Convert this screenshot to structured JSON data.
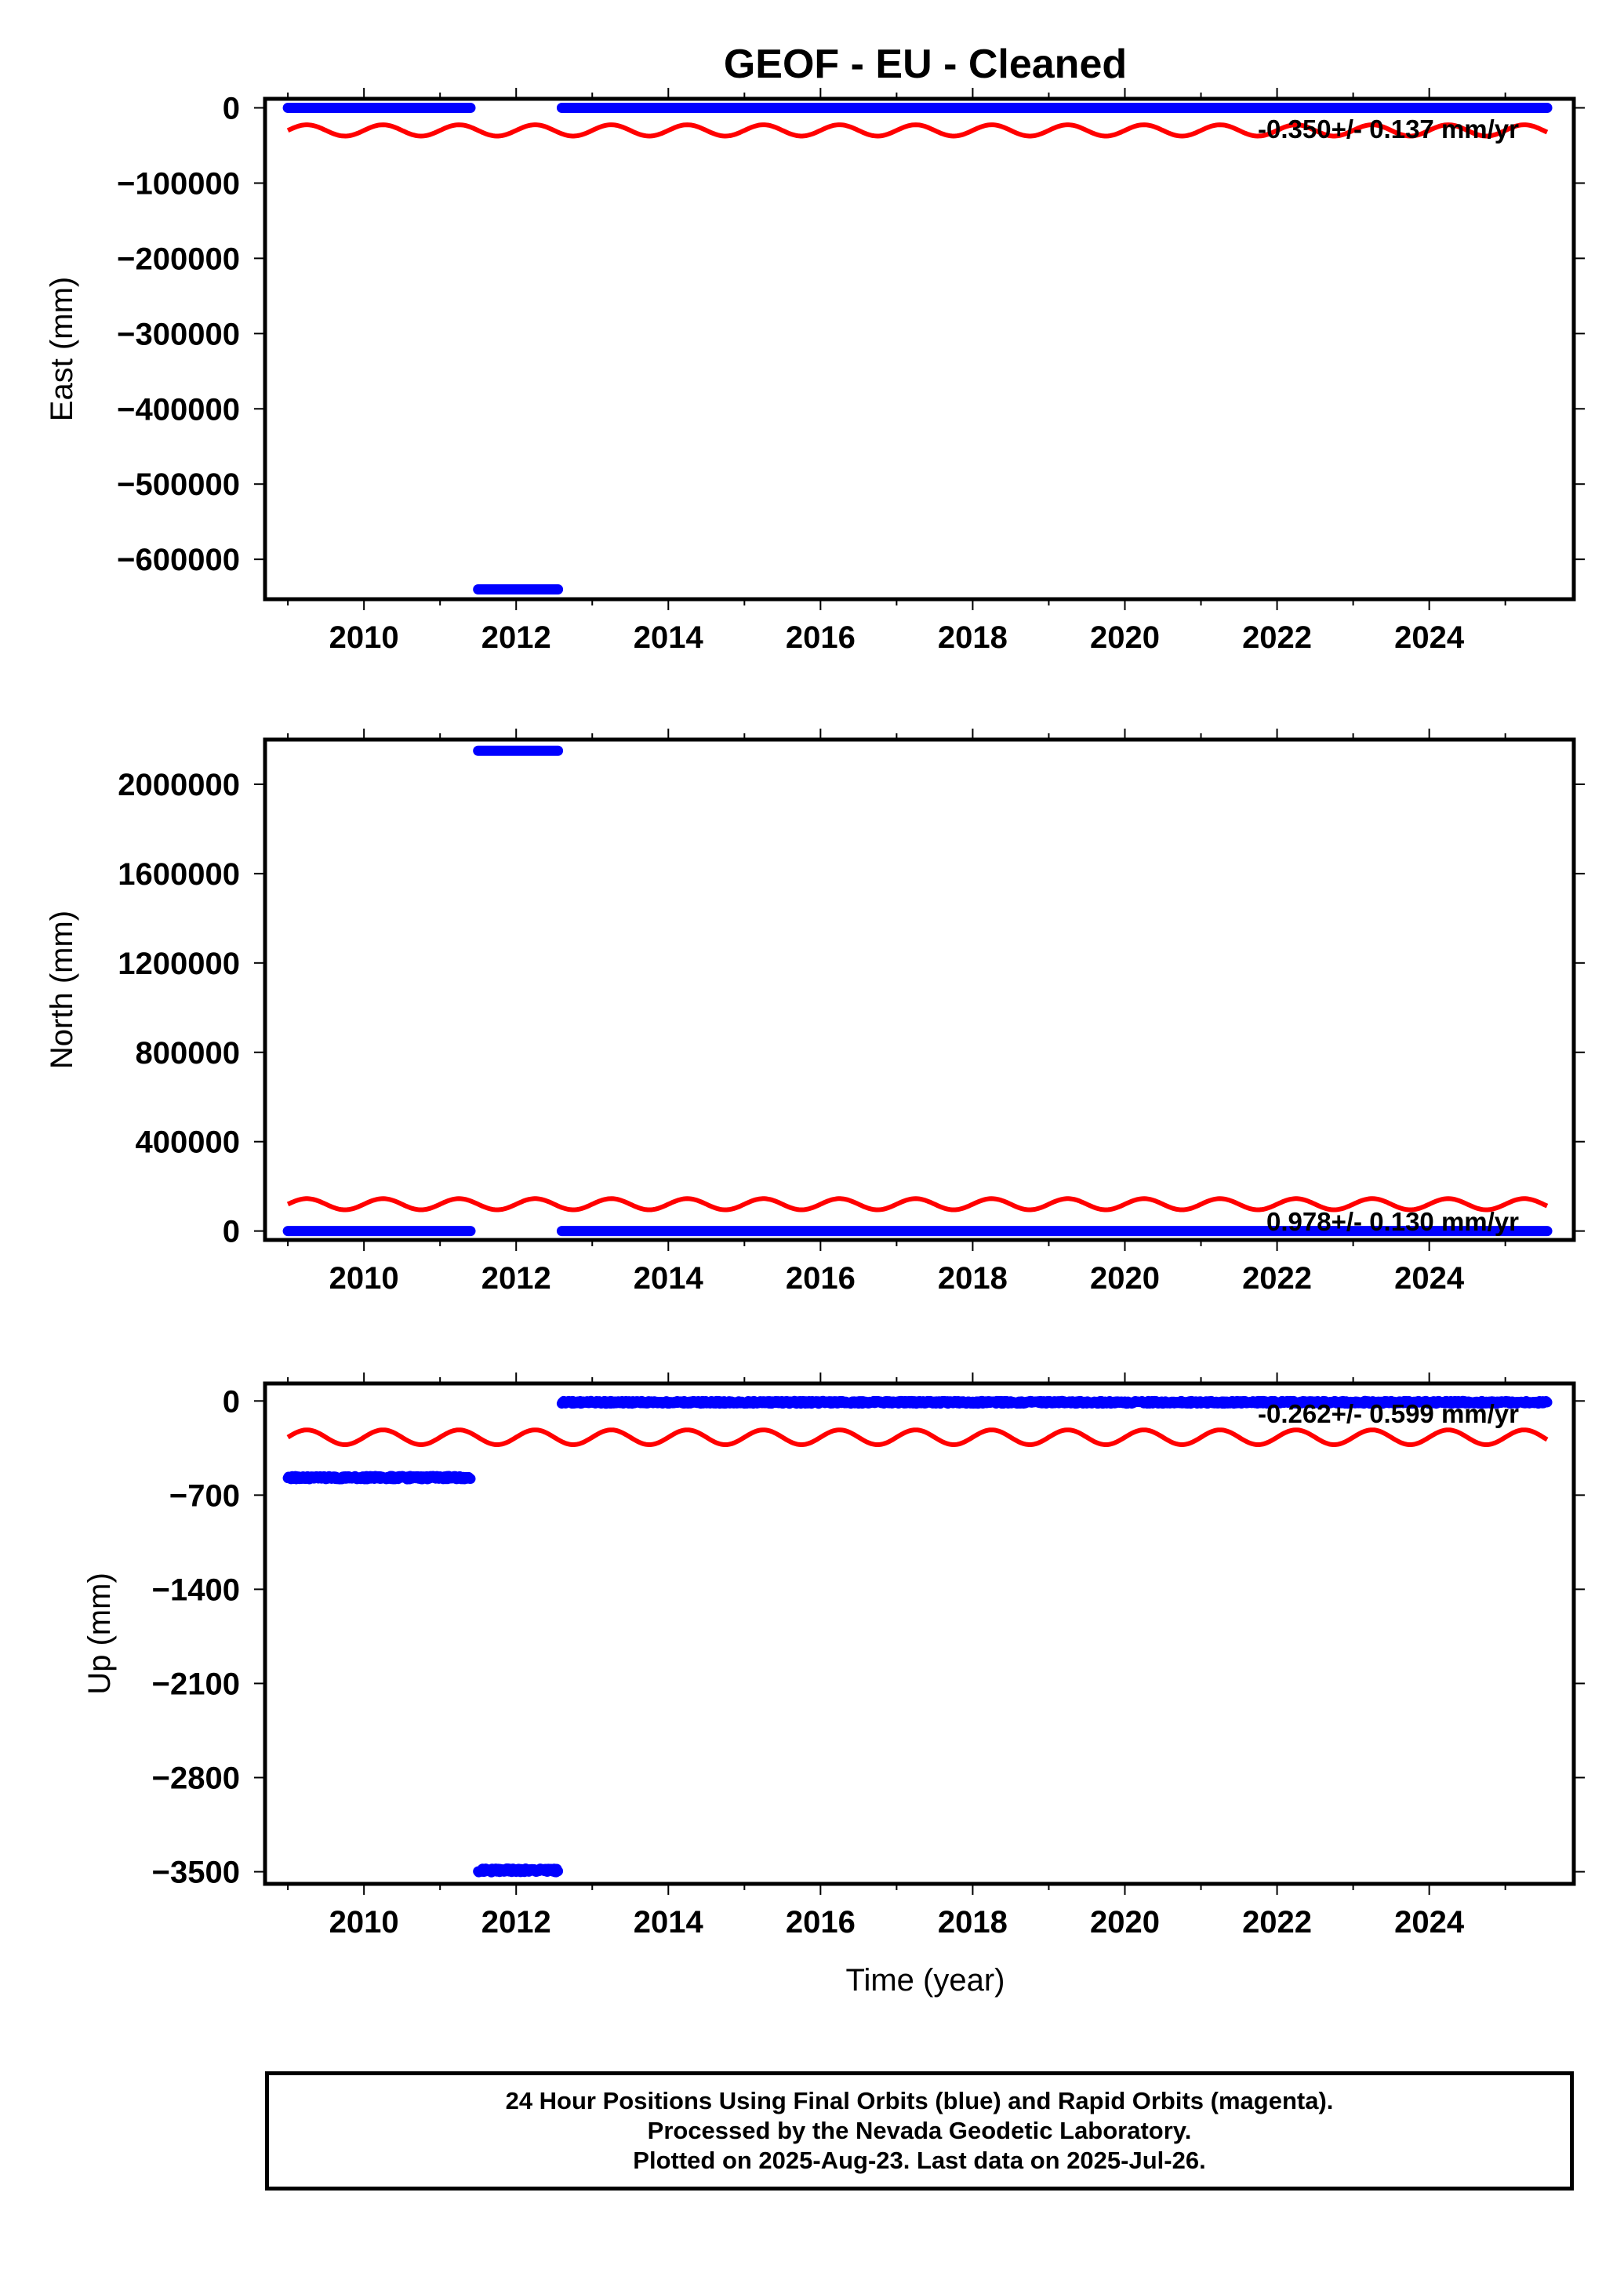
{
  "title": "GEOF  - EU - Cleaned",
  "xlabel": "Time (year)",
  "footer": {
    "line1": "24 Hour Positions Using Final Orbits (blue) and Rapid Orbits (magenta).",
    "line2": "Processed by the Nevada Geodetic Laboratory.",
    "line3": "Plotted on 2025-Aug-23. Last data on 2025-Jul-26."
  },
  "colors": {
    "final_orbits": "#0000ff",
    "model_curve": "#ff0000",
    "frame": "#000000"
  },
  "chart_data": [
    {
      "type": "scatter",
      "ylabel": "East (mm)",
      "rate_text": "-0.350+/- 0.137 mm/yr",
      "xlim": [
        2008.7,
        2025.9
      ],
      "ylim": [
        -653000,
        12000
      ],
      "x_ticks": [
        2010,
        2012,
        2014,
        2016,
        2018,
        2020,
        2022,
        2024
      ],
      "y_ticks": [
        0,
        -100000,
        -200000,
        -300000,
        -400000,
        -500000,
        -600000
      ],
      "y_tick_labels": [
        "0",
        "−100000",
        "−200000",
        "−300000",
        "−400000",
        "−500000",
        "−600000"
      ],
      "series": [
        {
          "name": "Final Orbits",
          "segments": [
            {
              "x_start": 2009.0,
              "x_end": 2011.4,
              "y": 0,
              "jitter": 0
            },
            {
              "x_start": 2011.5,
              "x_end": 2012.55,
              "y": -640000,
              "jitter": 0
            },
            {
              "x_start": 2012.6,
              "x_end": 2025.55,
              "y": 0,
              "jitter": 0
            }
          ]
        }
      ],
      "model_curve": {
        "x_start": 2009.0,
        "x_end": 2025.55,
        "offset": -30000,
        "amplitude": 7500,
        "period": 1.0,
        "phase": 0.0
      }
    },
    {
      "type": "scatter",
      "ylabel": "North (mm)",
      "rate_text": "0.978+/- 0.130 mm/yr",
      "xlim": [
        2008.7,
        2025.9
      ],
      "ylim": [
        -40000,
        2200000
      ],
      "x_ticks": [
        2010,
        2012,
        2014,
        2016,
        2018,
        2020,
        2022,
        2024
      ],
      "y_ticks": [
        0,
        400000,
        800000,
        1200000,
        1600000,
        2000000
      ],
      "y_tick_labels": [
        "0",
        "400000",
        "800000",
        "1200000",
        "1600000",
        "2000000"
      ],
      "series": [
        {
          "name": "Final Orbits",
          "segments": [
            {
              "x_start": 2009.0,
              "x_end": 2011.4,
              "y": 0,
              "jitter": 0
            },
            {
              "x_start": 2011.5,
              "x_end": 2012.55,
              "y": 2150000,
              "jitter": 0
            },
            {
              "x_start": 2012.6,
              "x_end": 2025.55,
              "y": 0,
              "jitter": 0
            }
          ]
        }
      ],
      "model_curve": {
        "x_start": 2009.0,
        "x_end": 2025.55,
        "offset": 120000,
        "amplitude": 25000,
        "period": 1.0,
        "phase": 0.0
      }
    },
    {
      "type": "scatter",
      "ylabel": "Up (mm)",
      "rate_text": "-0.262+/- 0.599 mm/yr",
      "xlim": [
        2008.7,
        2025.9
      ],
      "ylim": [
        -3590,
        130
      ],
      "x_ticks": [
        2010,
        2012,
        2014,
        2016,
        2018,
        2020,
        2022,
        2024
      ],
      "y_ticks": [
        0,
        -700,
        -1400,
        -2100,
        -2800,
        -3500
      ],
      "y_tick_labels": [
        "0",
        "−700",
        "−1400",
        "−2100",
        "−2800",
        "−3500"
      ],
      "series": [
        {
          "name": "Final Orbits",
          "segments": [
            {
              "x_start": 2009.0,
              "x_end": 2011.4,
              "y": -570,
              "jitter": 12
            },
            {
              "x_start": 2011.5,
              "x_end": 2012.55,
              "y": -3490,
              "jitter": 14
            },
            {
              "x_start": 2012.6,
              "x_end": 2025.55,
              "y": -10,
              "jitter": 10
            }
          ]
        }
      ],
      "model_curve": {
        "x_start": 2009.0,
        "x_end": 2025.55,
        "offset": -270,
        "amplitude": 55,
        "period": 1.0,
        "phase": 0.0
      }
    }
  ]
}
